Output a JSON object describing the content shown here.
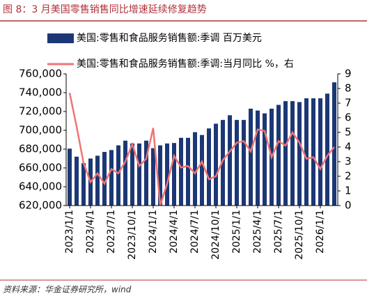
{
  "title": "图 8：3 月美国零售销售同比增速延续修复趋势",
  "source": "资料来源：华金证券研究所，wind",
  "chart_data": {
    "type": "bar",
    "categories": [
      "2023/1/1",
      null,
      null,
      "2023/4/1",
      null,
      null,
      "2023/7/1",
      null,
      null,
      "2023/10/1",
      null,
      null,
      "2024/1/1",
      null,
      null,
      "2024/4/1",
      null,
      null,
      "2024/7/1",
      null,
      null,
      "2024/10/1",
      null,
      null,
      "2025/1/1",
      null,
      null,
      "2025/4/1",
      null,
      null,
      "2025/7/1",
      null,
      null,
      "2025/10/1",
      null,
      null,
      "2026/1/1",
      null,
      null
    ],
    "series": [
      {
        "name": "美国:零售和食品服务销售额:季调 百万美元",
        "type": "bar",
        "color": "#1c3775",
        "values": [
          680500,
          672000,
          665000,
          670000,
          673000,
          677000,
          679000,
          684000,
          689000,
          686000,
          686000,
          689000,
          681000,
          684000,
          686000,
          686500,
          692000,
          692000,
          698000,
          695000,
          702000,
          707000,
          711000,
          716000,
          711000,
          711000,
          723000,
          721000,
          718000,
          723000,
          727000,
          731000,
          731000,
          730000,
          734000,
          734000,
          734000,
          739000,
          751000
        ]
      },
      {
        "name": "美国:零售和食品服务销售额:季调:当月同比 %，右",
        "type": "line",
        "axis": "y2",
        "color": "#f07474",
        "values": [
          7.7,
          5.4,
          2.9,
          1.6,
          2.2,
          1.5,
          2.5,
          2.2,
          3.0,
          4.2,
          2.7,
          3.2,
          5.3,
          0,
          1.5,
          3.4,
          2.6,
          2.7,
          2.2,
          3.0,
          1.8,
          2.0,
          3.1,
          3.7,
          4.3,
          4.4,
          3.7,
          5.2,
          5.1,
          3.3,
          4.4,
          4.1,
          5.0,
          4.3,
          3.2,
          3.3,
          2.5,
          3.4,
          4.0
        ]
      }
    ],
    "ylim": [
      620000,
      760000
    ],
    "yticks": [
      {
        "value": 620000,
        "label": "620,000"
      },
      {
        "value": 640000,
        "label": "640,000"
      },
      {
        "value": 660000,
        "label": "660,000"
      },
      {
        "value": 680000,
        "label": "680,000"
      },
      {
        "value": 700000,
        "label": "700,000"
      },
      {
        "value": 720000,
        "label": "720,000"
      },
      {
        "value": 740000,
        "label": "740,000"
      },
      {
        "value": 760000,
        "label": "760,000"
      }
    ],
    "y2lim": [
      0,
      9
    ],
    "y2ticks": [
      0,
      1,
      2,
      3,
      4,
      5,
      6,
      7,
      8,
      9
    ]
  }
}
